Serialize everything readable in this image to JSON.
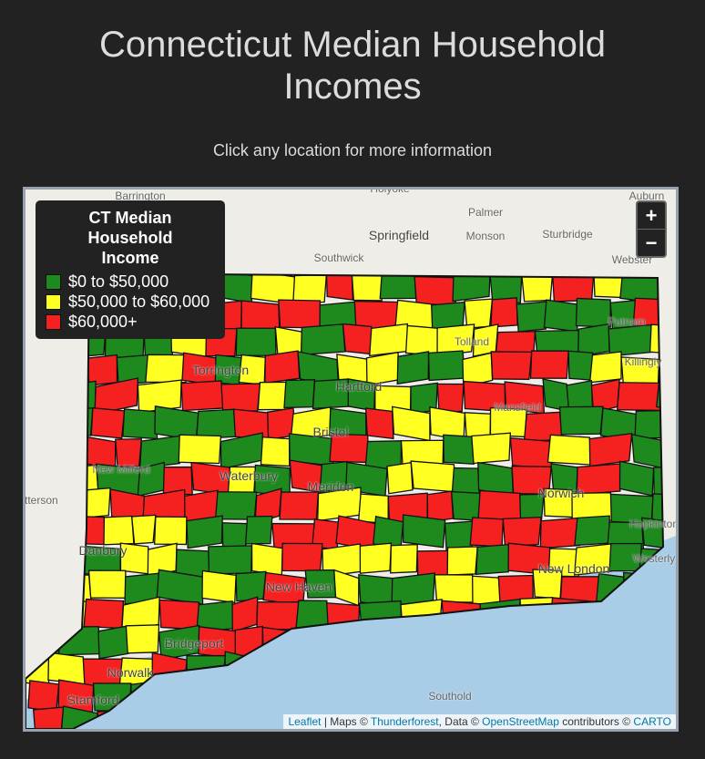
{
  "header": {
    "title": "Connecticut Median Household Incomes",
    "subtitle": "Click any location for more information"
  },
  "map": {
    "legend": {
      "title": "CT Median Household Income",
      "items": [
        {
          "label": "$0 to $50,000",
          "color": "#1e8a1e"
        },
        {
          "label": "$50,000 to $60,000",
          "color": "#ffff22"
        },
        {
          "label": "$60,000+",
          "color": "#f52020"
        }
      ]
    },
    "zoom": {
      "in": "+",
      "out": "−"
    },
    "place_labels": [
      "Barrington",
      "Holyoke",
      "Auburn",
      "Palmer",
      "Springfield",
      "Monson",
      "Sturbridge",
      "Southwick",
      "Webster",
      "Torrington",
      "Hartford",
      "Waterbury",
      "New Haven",
      "Bridgeport",
      "Norwalk",
      "Stamford",
      "Danbury",
      "Norwich",
      "New London",
      "Patterson",
      "Southold",
      "Westerly",
      "Hopkinton",
      "Mansfield",
      "Killingly",
      "Putnam",
      "Tolland",
      "Meriden",
      "Bristol",
      "New Milford"
    ],
    "attribution": {
      "leaflet": "Leaflet",
      "maps": " | Maps © ",
      "thunderforest": "Thunderforest",
      "data": ", Data © ",
      "osm": "OpenStreetMap",
      "contrib": " contributors © ",
      "carto": "CARTO"
    }
  }
}
